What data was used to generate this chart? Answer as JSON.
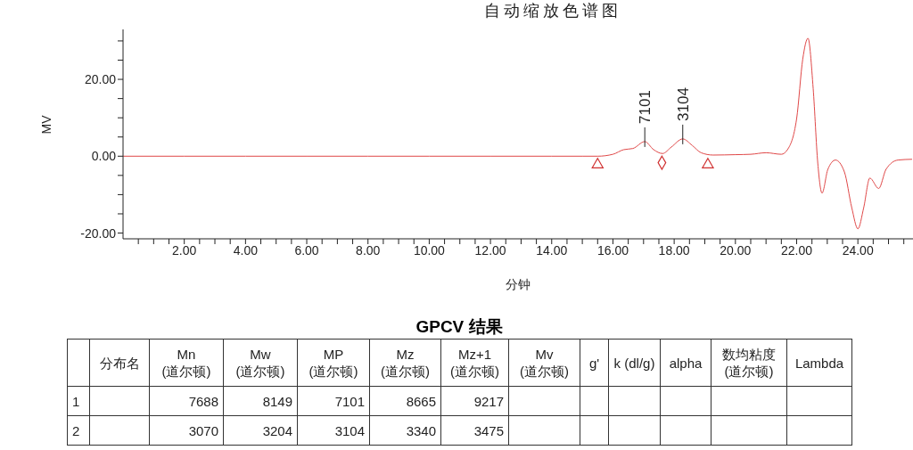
{
  "chart_data": [
    {
      "type": "line",
      "title": "自动缩放色谱图",
      "xlabel": "分钟",
      "ylabel": "MV",
      "xlim": [
        0,
        25.8
      ],
      "ylim": [
        -21.5,
        33
      ],
      "xticks": [
        {
          "value": 0.5,
          "label": null
        },
        {
          "value": 1,
          "label": null
        },
        {
          "value": 1.5,
          "label": null
        },
        {
          "value": 2,
          "label": "2.00"
        },
        {
          "value": 2.5,
          "label": null
        },
        {
          "value": 3,
          "label": null
        },
        {
          "value": 3.5,
          "label": null
        },
        {
          "value": 4,
          "label": "4.00"
        },
        {
          "value": 4.5,
          "label": null
        },
        {
          "value": 5,
          "label": null
        },
        {
          "value": 5.5,
          "label": null
        },
        {
          "value": 6,
          "label": "6.00"
        },
        {
          "value": 6.5,
          "label": null
        },
        {
          "value": 7,
          "label": null
        },
        {
          "value": 7.5,
          "label": null
        },
        {
          "value": 8,
          "label": "8.00"
        },
        {
          "value": 8.5,
          "label": null
        },
        {
          "value": 9,
          "label": null
        },
        {
          "value": 9.5,
          "label": null
        },
        {
          "value": 10,
          "label": "10.00"
        },
        {
          "value": 10.5,
          "label": null
        },
        {
          "value": 11,
          "label": null
        },
        {
          "value": 11.5,
          "label": null
        },
        {
          "value": 12,
          "label": "12.00"
        },
        {
          "value": 12.5,
          "label": null
        },
        {
          "value": 13,
          "label": null
        },
        {
          "value": 13.5,
          "label": null
        },
        {
          "value": 14,
          "label": "14.00"
        },
        {
          "value": 14.5,
          "label": null
        },
        {
          "value": 15,
          "label": null
        },
        {
          "value": 15.5,
          "label": null
        },
        {
          "value": 16,
          "label": "16.00"
        },
        {
          "value": 16.5,
          "label": null
        },
        {
          "value": 17,
          "label": null
        },
        {
          "value": 17.5,
          "label": null
        },
        {
          "value": 18,
          "label": "18.00"
        },
        {
          "value": 18.5,
          "label": null
        },
        {
          "value": 19,
          "label": null
        },
        {
          "value": 19.5,
          "label": null
        },
        {
          "value": 20,
          "label": "20.00"
        },
        {
          "value": 20.5,
          "label": null
        },
        {
          "value": 21,
          "label": null
        },
        {
          "value": 21.5,
          "label": null
        },
        {
          "value": 22,
          "label": "22.00"
        },
        {
          "value": 22.5,
          "label": null
        },
        {
          "value": 23,
          "label": null
        },
        {
          "value": 23.5,
          "label": null
        },
        {
          "value": 24,
          "label": "24.00"
        },
        {
          "value": 24.5,
          "label": null
        },
        {
          "value": 25,
          "label": null
        },
        {
          "value": 25.5,
          "label": null
        }
      ],
      "yticks": [
        {
          "value": -20,
          "label": "-20.00"
        },
        {
          "value": -15,
          "label": null
        },
        {
          "value": -10,
          "label": null
        },
        {
          "value": -5,
          "label": null
        },
        {
          "value": 0,
          "label": "0.00"
        },
        {
          "value": 5,
          "label": null
        },
        {
          "value": 10,
          "label": null
        },
        {
          "value": 15,
          "label": null
        },
        {
          "value": 20,
          "label": "20.00"
        },
        {
          "value": 25,
          "label": null
        },
        {
          "value": 30,
          "label": null
        }
      ],
      "series": [
        {
          "type": "line",
          "marker": "none",
          "color": "#e04848",
          "x": [
            0,
            2,
            4,
            6,
            8,
            10,
            12,
            14,
            15,
            15.5,
            16,
            16.35,
            16.65,
            17.04,
            17.33,
            17.62,
            17.91,
            18.28,
            18.59,
            18.88,
            19.27,
            20,
            20.5,
            21,
            21.5,
            21.7,
            22,
            22.2,
            22.37,
            22.54,
            22.69,
            22.83,
            23.02,
            23.27,
            23.56,
            23.8,
            24,
            24.19,
            24.39,
            24.68,
            24.92,
            25.31,
            25.77
          ],
          "values": [
            0,
            0,
            0,
            0,
            0,
            0,
            0,
            0,
            0,
            0,
            0.5,
            1.7,
            2,
            3.8,
            1.7,
            0.7,
            2.4,
            4.5,
            2.8,
            0.9,
            0.3,
            0.4,
            0.5,
            0.9,
            0.5,
            1.7,
            9.8,
            25.3,
            30.7,
            17.6,
            -1.8,
            -9.6,
            -3.4,
            -1,
            -4.1,
            -13.4,
            -18.9,
            -13.4,
            -5.7,
            -8.4,
            -3.4,
            -1,
            -0.8
          ]
        },
        {
          "type": "scatter",
          "marker": "triangle",
          "color": "#d03030",
          "x": [
            15.5,
            19.1
          ],
          "values": [
            -2.2,
            -2.2
          ]
        },
        {
          "type": "scatter",
          "marker": "diamond",
          "color": "#d03030",
          "x": [
            17.6
          ],
          "values": [
            -1.7
          ]
        }
      ],
      "annotations": [
        {
          "text": "7101",
          "x": 17.04,
          "y": 3.8
        },
        {
          "text": "3104",
          "x": 18.28,
          "y": 4.5
        }
      ]
    },
    {
      "type": "other",
      "title": "GPCV 结果",
      "categories": [
        null,
        "分布名",
        "Mn (道尔顿)",
        "Mw (道尔顿)",
        "MP (道尔顿)",
        "Mz (道尔顿)",
        "Mz+1 (道尔顿)",
        "Mv (道尔顿)",
        "g'",
        "k (dl/g)",
        "alpha",
        "数均粘度 (道尔顿)",
        "Lambda"
      ],
      "cell_labels": [
        [
          "1",
          null,
          "7688",
          "8149",
          "7101",
          "8665",
          "9217",
          null,
          null,
          null,
          null,
          null,
          null
        ],
        [
          "2",
          null,
          "3070",
          "3204",
          "3104",
          "3340",
          "3475",
          null,
          null,
          null,
          null,
          null,
          null
        ]
      ]
    }
  ]
}
